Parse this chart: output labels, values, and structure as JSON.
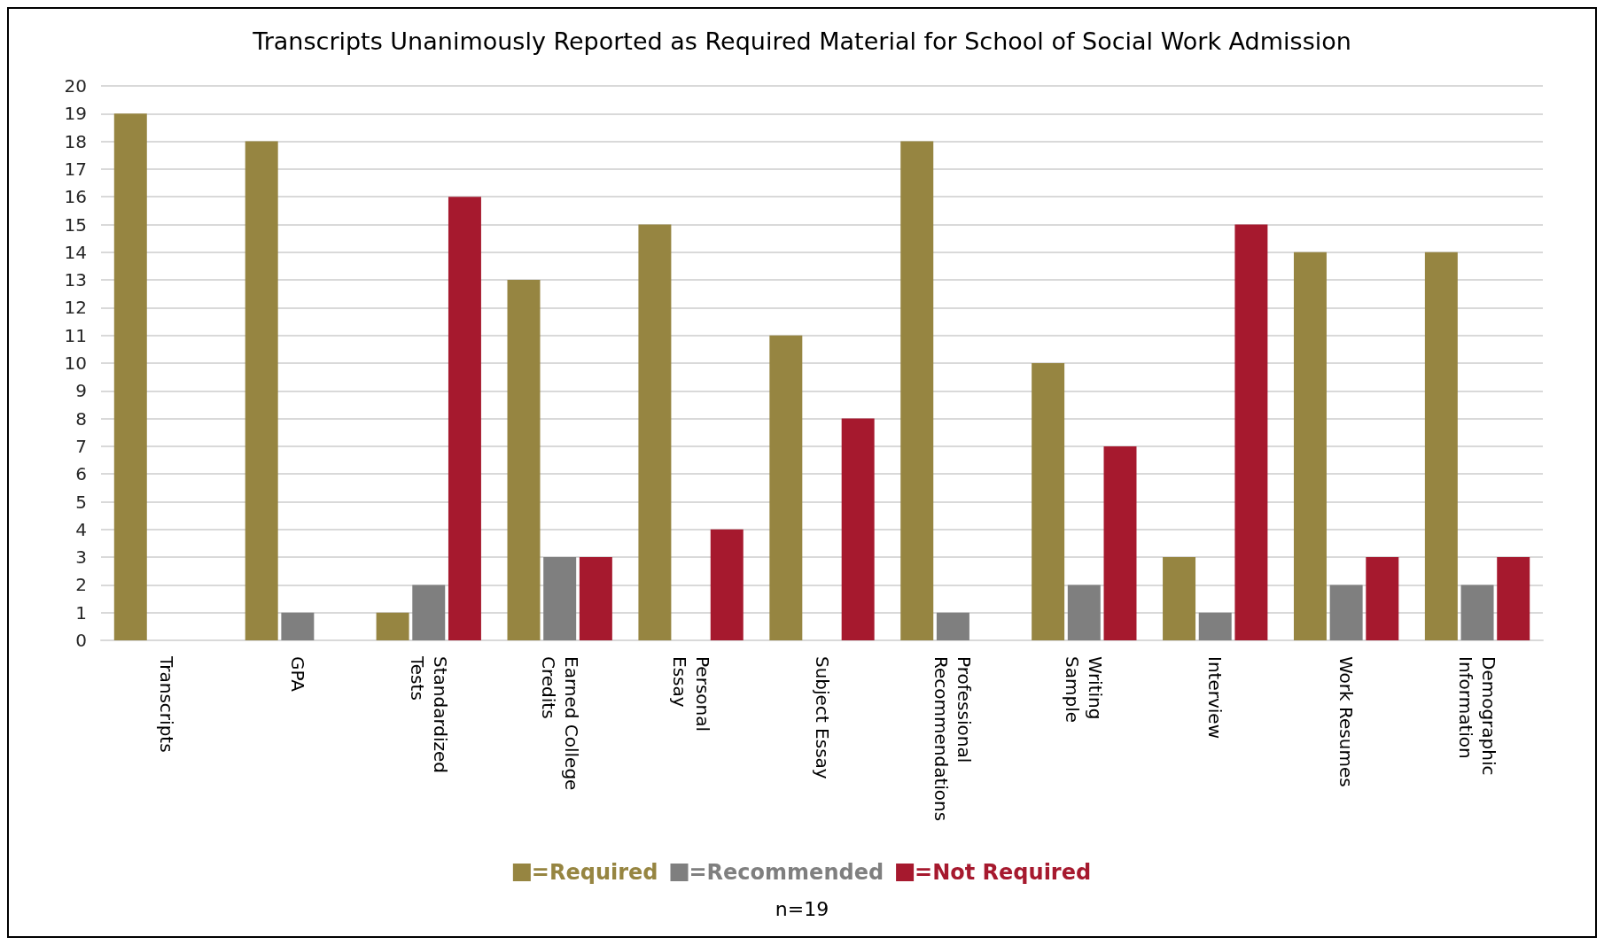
{
  "chart_data": {
    "type": "bar",
    "title": "Transcripts Unanimously Reported as Required Material for School of Social Work Admission",
    "categories": [
      "Transcripts",
      "GPA",
      "Standardized\nTests",
      "Earned College\nCredits",
      "Personal\nEssay",
      "Subject Essay",
      "Professional\nRecommendations",
      "Writing\nSample",
      "Interview",
      "Work Resumes",
      "Demographic\nInformation"
    ],
    "series": [
      {
        "name": "=Required",
        "color": "#968541",
        "values": [
          19,
          18,
          1,
          13,
          15,
          11,
          18,
          10,
          3,
          14,
          14
        ]
      },
      {
        "name": "=Recommended",
        "color": "#7f7f7f",
        "values": [
          0,
          1,
          2,
          3,
          0,
          0,
          1,
          2,
          1,
          2,
          2
        ]
      },
      {
        "name": "=Not Required",
        "color": "#a6192e",
        "values": [
          0,
          0,
          16,
          3,
          4,
          8,
          0,
          7,
          15,
          3,
          3
        ]
      }
    ],
    "ylim": [
      0,
      20
    ],
    "yticks": [
      0,
      1,
      2,
      3,
      4,
      5,
      6,
      7,
      8,
      9,
      10,
      11,
      12,
      13,
      14,
      15,
      16,
      17,
      18,
      19,
      20
    ],
    "grid": "y",
    "legend": "bottom",
    "annotations": [
      "n=19"
    ]
  }
}
